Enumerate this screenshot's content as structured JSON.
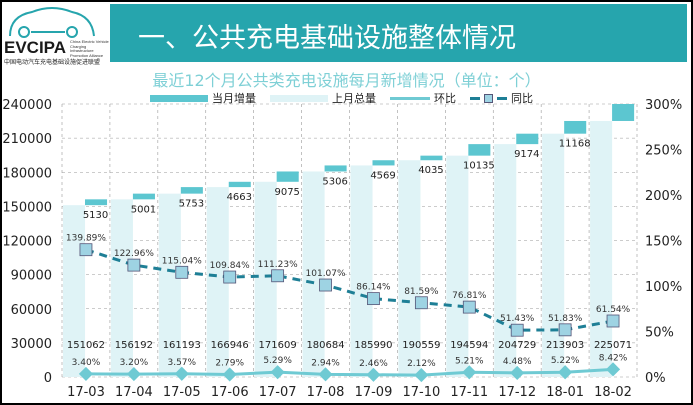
{
  "header": {
    "title": "一、公共充电基础设施整体情况",
    "logo_text": "EVCIPA",
    "logo_en": "China Electric Vehicle Charging Infrastructure Promotion Alliance",
    "logo_cn": "中国电动汽车充电基础设施促进联盟"
  },
  "colors": {
    "header": "#26a5ad",
    "increment": "#5cc6d0",
    "total": "#dff3f6",
    "mom": "#6fcad3",
    "yoy": "#1e7f96",
    "yoy_marker": "#9ed3e3"
  },
  "chart_data": {
    "type": "bar",
    "title": "最近12个月公共类充电设施每月新增情况（单位：个）",
    "categories": [
      "17-03",
      "17-04",
      "17-05",
      "17-06",
      "17-07",
      "17-08",
      "17-09",
      "17-10",
      "17-11",
      "17-12",
      "18-01",
      "18-02"
    ],
    "series": [
      {
        "name": "当月增量",
        "type": "bar-stacked",
        "values": [
          5130,
          5001,
          5753,
          4663,
          9075,
          5306,
          4569,
          4035,
          10135,
          9174,
          11168,
          14929
        ],
        "labels": [
          "5130",
          "5001",
          "5753",
          "4663",
          "9075",
          "5306",
          "4569",
          "4035",
          "10135",
          "9174",
          "11168",
          ""
        ]
      },
      {
        "name": "上月总量",
        "type": "bar",
        "values": [
          151062,
          156192,
          161193,
          166946,
          171609,
          180684,
          185990,
          190559,
          194594,
          204729,
          213903,
          225071
        ]
      },
      {
        "name": "环比",
        "type": "line",
        "axis": "right",
        "values": [
          3.4,
          3.2,
          3.57,
          2.79,
          5.29,
          2.94,
          2.46,
          2.12,
          5.21,
          4.48,
          5.22,
          8.42
        ]
      },
      {
        "name": "同比",
        "type": "line-dashed",
        "axis": "right",
        "values": [
          139.89,
          122.96,
          115.04,
          109.84,
          111.23,
          101.07,
          86.14,
          81.59,
          76.81,
          51.43,
          51.83,
          61.54
        ]
      }
    ],
    "yleft": {
      "range": [
        0,
        240000
      ],
      "ticks": [
        0,
        30000,
        60000,
        90000,
        120000,
        150000,
        180000,
        210000,
        240000
      ]
    },
    "yright": {
      "range": [
        0,
        300
      ],
      "ticks": [
        "0%",
        "50%",
        "100%",
        "150%",
        "200%",
        "250%",
        "300%"
      ]
    },
    "grid": true,
    "legend": "top"
  }
}
